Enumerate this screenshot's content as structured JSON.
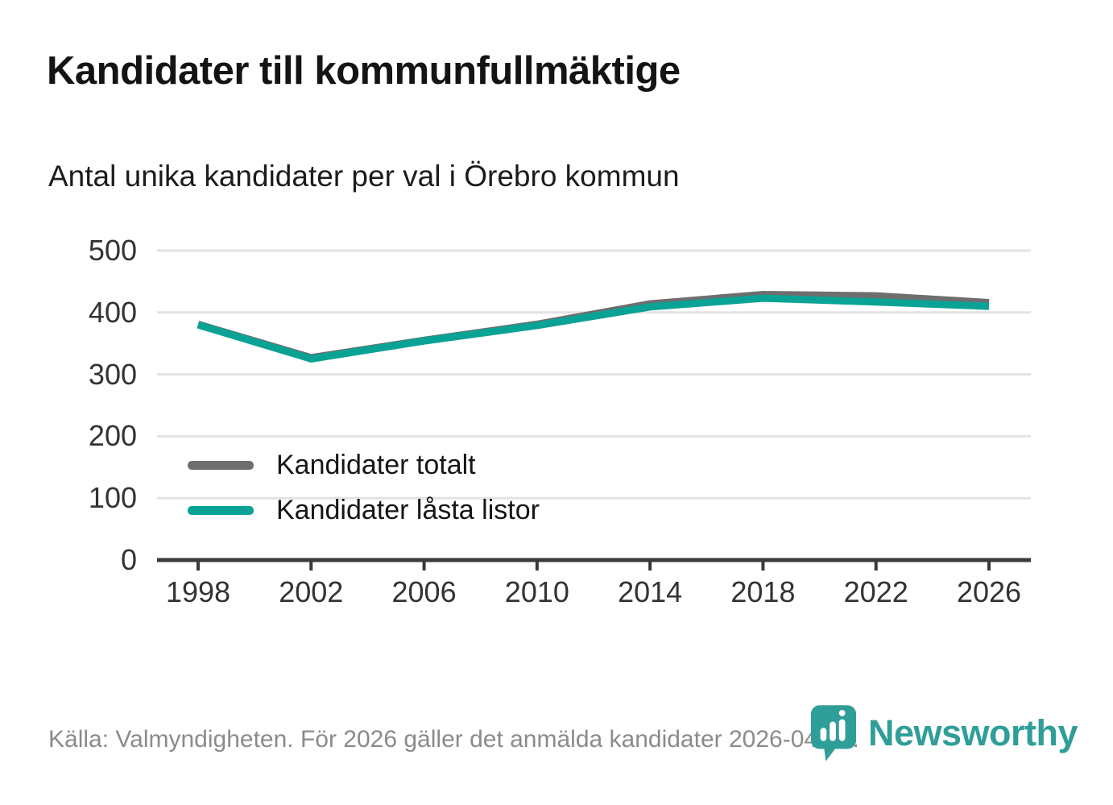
{
  "chart_data": {
    "type": "line",
    "title": "Kandidater till kommunfullmäktige",
    "subtitle": "Antal unika kandidater per val i Örebro kommun",
    "x": [
      1998,
      2002,
      2006,
      2010,
      2014,
      2018,
      2022,
      2026
    ],
    "series": [
      {
        "name": "Kandidater totalt",
        "color": "#6e6e6e",
        "values": [
          381,
          327,
          355,
          381,
          414,
          429,
          427,
          416
        ]
      },
      {
        "name": "Kandidater låsta listor",
        "color": "#09a396",
        "values": [
          380,
          325,
          354,
          379,
          409,
          423,
          417,
          410
        ]
      }
    ],
    "ylim": [
      0,
      500
    ],
    "yticks": [
      0,
      100,
      200,
      300,
      400,
      500
    ],
    "xlabel": "",
    "ylabel": "",
    "grid": "horizontal",
    "legend_position": "inside-bottom-left"
  },
  "footer": {
    "source": "Källa: Valmyndigheten. För 2026 gäller det anmälda kandidater 2026-04-10."
  },
  "brand": {
    "wordmark": "Newsworthy",
    "color": "#2f9e98"
  }
}
